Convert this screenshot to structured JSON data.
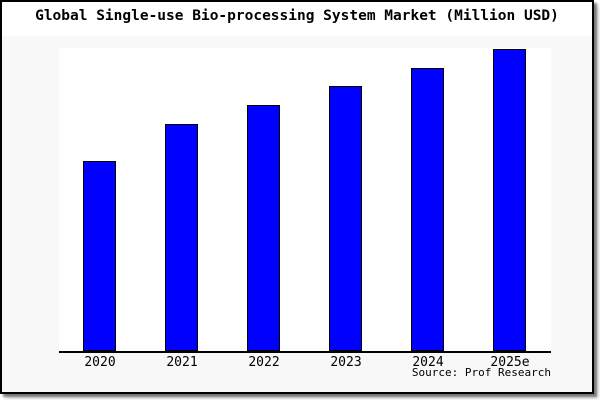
{
  "title": "Global Single-use Bio-processing System Market (Million USD)",
  "source": "Source: Prof Research",
  "colors": {
    "figure_bg": "#f8f8f8",
    "plot_bg": "#ffffff",
    "frame_border": "#000000",
    "text": "#000000"
  },
  "chart_data": {
    "type": "bar",
    "title": "Global Single-use Bio-processing System Market (Million USD)",
    "categories": [
      "2020",
      "2021",
      "2022",
      "2023",
      "2024",
      "2025e"
    ],
    "values": [
      62.8,
      75.1,
      81.4,
      87.7,
      93.7,
      100
    ],
    "xlabel": "",
    "ylabel": "",
    "ylim": [
      0,
      101
    ],
    "grid": false,
    "legend": false,
    "y_axis_labeled": false,
    "note": "No y-axis ticks shown; values are relative heights estimated from pixels with 2025e = 100",
    "bar_color": "#0000ff",
    "bar_edge_color": "#000000"
  }
}
